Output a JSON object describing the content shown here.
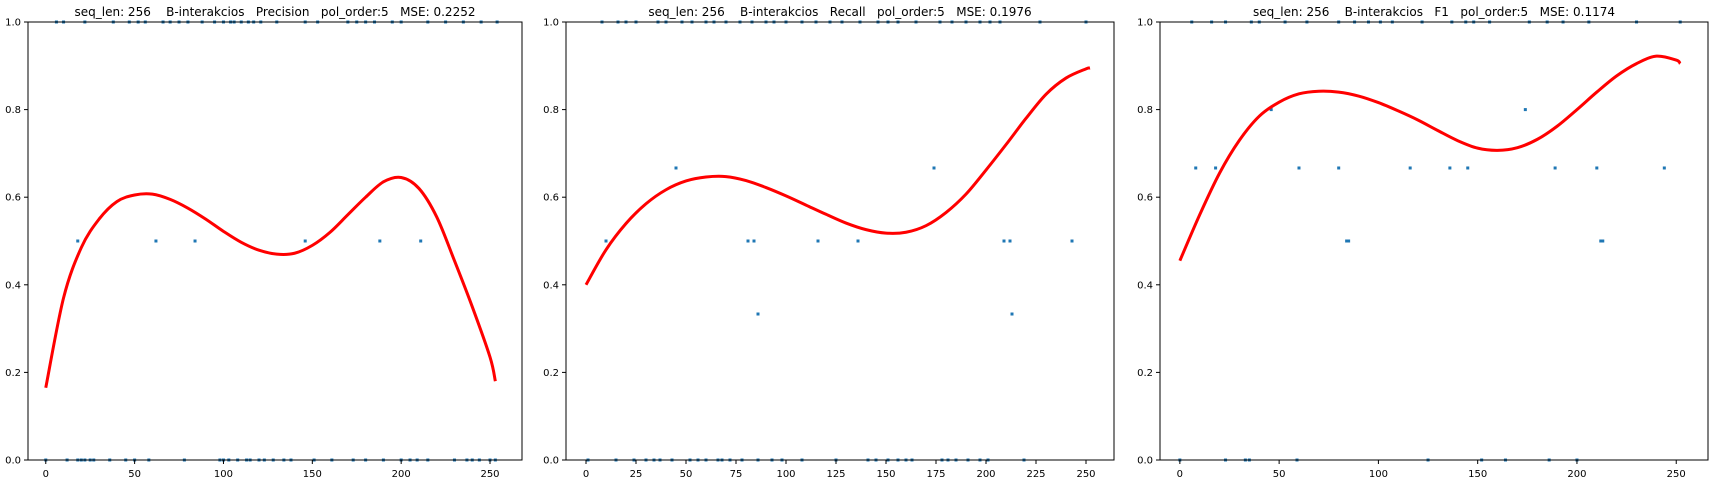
{
  "chart_data": [
    {
      "type": "scatter",
      "title": "seq_len: 256    B-interakcios   Precision   pol_order:5   MSE: 0.2252",
      "xlabel": "",
      "ylabel": "",
      "xlim": [
        -10,
        268
      ],
      "ylim": [
        0,
        1
      ],
      "xticks": [
        0,
        50,
        100,
        150,
        200,
        250
      ],
      "yticks": [
        0.0,
        0.2,
        0.4,
        0.6,
        0.8,
        1.0
      ],
      "xtick_labels": [
        "0",
        "50",
        "100",
        "150",
        "200",
        "250"
      ],
      "ytick_labels": [
        "0.0",
        "0.2",
        "0.4",
        "0.6",
        "0.8",
        "1.0"
      ],
      "colors": {
        "points": "#1f77b4",
        "fit": "#ff0000"
      },
      "points": {
        "x": [
          18,
          62,
          84,
          146,
          188,
          211
        ],
        "y": [
          0.5,
          0.5,
          0.5,
          0.5,
          0.5,
          0.5
        ]
      },
      "edge_points": {
        "x_at_one": [
          6,
          10,
          22,
          38,
          47,
          52,
          56,
          66,
          70,
          75,
          80,
          88,
          95,
          100,
          104,
          106,
          110,
          114,
          117,
          121,
          130,
          146,
          153,
          170,
          175,
          180,
          185,
          195,
          200,
          215,
          225,
          235,
          245,
          254
        ],
        "x_at_zero": [
          0,
          12,
          18,
          20,
          22,
          25,
          27,
          36,
          45,
          50,
          58,
          78,
          98,
          100,
          103,
          108,
          113,
          115,
          120,
          123,
          128,
          134,
          138,
          151,
          161,
          173,
          180,
          190,
          200,
          205,
          209,
          215,
          230,
          237,
          240,
          244,
          250,
          253
        ]
      },
      "fit": {
        "x": [
          0,
          10,
          20,
          30,
          40,
          50,
          60,
          70,
          80,
          90,
          100,
          110,
          120,
          130,
          140,
          150,
          160,
          170,
          180,
          190,
          200,
          210,
          220,
          230,
          240,
          250,
          253
        ],
        "y": [
          0.165,
          0.37,
          0.485,
          0.55,
          0.59,
          0.605,
          0.607,
          0.595,
          0.575,
          0.55,
          0.522,
          0.497,
          0.479,
          0.47,
          0.472,
          0.49,
          0.52,
          0.56,
          0.6,
          0.635,
          0.645,
          0.62,
          0.555,
          0.455,
          0.35,
          0.235,
          0.18
        ]
      }
    },
    {
      "type": "scatter",
      "title": "seq_len: 256    B-interakcios   Recall   pol_order:5   MSE: 0.1976",
      "xlabel": "",
      "ylabel": "",
      "xlim": [
        -10,
        264
      ],
      "ylim": [
        0,
        1
      ],
      "xticks": [
        0,
        25,
        50,
        75,
        100,
        125,
        150,
        175,
        200,
        225,
        250
      ],
      "yticks": [
        0.0,
        0.2,
        0.4,
        0.6,
        0.8,
        1.0
      ],
      "xtick_labels": [
        "0",
        "25",
        "50",
        "75",
        "100",
        "125",
        "150",
        "175",
        "200",
        "225",
        "250"
      ],
      "ytick_labels": [
        "0.0",
        "0.2",
        "0.4",
        "0.6",
        "0.8",
        "1.0"
      ],
      "colors": {
        "points": "#1f77b4",
        "fit": "#ff0000"
      },
      "points": {
        "x": [
          10,
          45,
          81,
          84,
          86,
          116,
          136,
          174,
          209,
          212,
          213,
          243
        ],
        "y": [
          0.5,
          0.6667,
          0.5,
          0.5,
          0.3333,
          0.5,
          0.5,
          0.6667,
          0.5,
          0.5,
          0.3333,
          0.5
        ]
      },
      "edge_points": {
        "x_at_one": [
          8,
          16,
          20,
          25,
          36,
          40,
          48,
          53,
          60,
          64,
          70,
          77,
          83,
          90,
          94,
          100,
          108,
          115,
          122,
          128,
          137,
          146,
          151,
          156,
          165,
          177,
          183,
          190,
          197,
          202,
          207,
          227,
          250
        ],
        "x_at_zero": [
          1,
          15,
          24,
          30,
          34,
          37,
          43,
          52,
          56,
          60,
          66,
          68,
          72,
          78,
          86,
          93,
          98,
          108,
          125,
          141,
          145,
          151,
          156,
          160,
          163,
          178,
          181,
          185,
          191,
          197,
          201,
          219
        ]
      },
      "fit": {
        "x": [
          0,
          10,
          20,
          30,
          40,
          50,
          60,
          70,
          80,
          90,
          100,
          110,
          120,
          130,
          140,
          150,
          160,
          170,
          180,
          190,
          200,
          210,
          220,
          230,
          240,
          250,
          252
        ],
        "y": [
          0.4,
          0.48,
          0.54,
          0.585,
          0.617,
          0.637,
          0.646,
          0.647,
          0.638,
          0.622,
          0.603,
          0.582,
          0.561,
          0.541,
          0.526,
          0.518,
          0.52,
          0.535,
          0.565,
          0.607,
          0.662,
          0.72,
          0.78,
          0.835,
          0.872,
          0.893,
          0.895
        ]
      }
    },
    {
      "type": "scatter",
      "title": "seq_len: 256    B-interakcios   F1   pol_order:5   MSE: 0.1174",
      "xlabel": "",
      "ylabel": "",
      "xlim": [
        -10,
        266
      ],
      "ylim": [
        0,
        1
      ],
      "xticks": [
        0,
        50,
        100,
        150,
        200,
        250
      ],
      "yticks": [
        0.0,
        0.2,
        0.4,
        0.6,
        0.8,
        1.0
      ],
      "xtick_labels": [
        "0",
        "50",
        "100",
        "150",
        "200",
        "250"
      ],
      "ytick_labels": [
        "0.0",
        "0.2",
        "0.4",
        "0.6",
        "0.8",
        "1.0"
      ],
      "colors": {
        "points": "#1f77b4",
        "fit": "#ff0000"
      },
      "points": {
        "x": [
          8,
          18,
          46,
          60,
          80,
          84,
          85,
          116,
          136,
          145,
          174,
          189,
          210,
          212,
          213,
          244
        ],
        "y": [
          0.6667,
          0.6667,
          0.8,
          0.6667,
          0.6667,
          0.5,
          0.5,
          0.6667,
          0.6667,
          0.6667,
          0.8,
          0.6667,
          0.6667,
          0.5,
          0.5,
          0.6667
        ]
      },
      "edge_points": {
        "x_at_one": [
          6,
          16,
          23,
          36,
          40,
          53,
          64,
          80,
          88,
          95,
          101,
          107,
          122,
          137,
          144,
          148,
          156,
          176,
          185,
          193,
          206,
          230,
          252
        ],
        "x_at_zero": [
          0,
          23,
          33,
          35,
          59,
          125,
          152,
          164,
          186,
          200
        ]
      },
      "fit": {
        "x": [
          0,
          10,
          20,
          30,
          40,
          50,
          60,
          70,
          80,
          90,
          100,
          110,
          120,
          130,
          140,
          150,
          160,
          170,
          180,
          190,
          200,
          210,
          220,
          230,
          240,
          250,
          252
        ],
        "y": [
          0.455,
          0.56,
          0.655,
          0.73,
          0.785,
          0.817,
          0.836,
          0.842,
          0.84,
          0.831,
          0.816,
          0.797,
          0.776,
          0.752,
          0.729,
          0.712,
          0.707,
          0.713,
          0.732,
          0.762,
          0.8,
          0.84,
          0.877,
          0.905,
          0.922,
          0.913,
          0.905
        ]
      }
    }
  ]
}
